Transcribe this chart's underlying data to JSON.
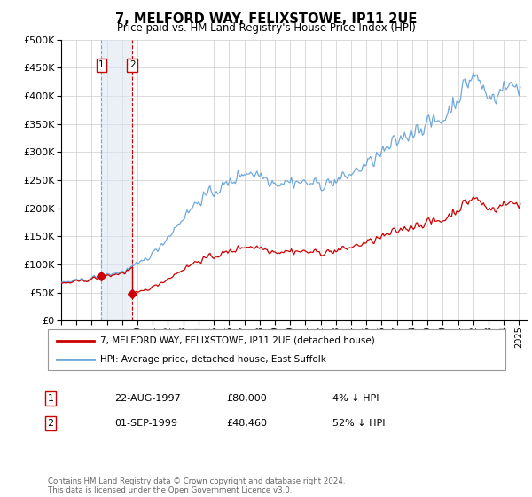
{
  "title": "7, MELFORD WAY, FELIXSTOWE, IP11 2UE",
  "subtitle": "Price paid vs. HM Land Registry's House Price Index (HPI)",
  "legend_line1": "7, MELFORD WAY, FELIXSTOWE, IP11 2UE (detached house)",
  "legend_line2": "HPI: Average price, detached house, East Suffolk",
  "footnote": "Contains HM Land Registry data © Crown copyright and database right 2024.\nThis data is licensed under the Open Government Licence v3.0.",
  "transaction1": {
    "label": "1",
    "date": "22-AUG-1997",
    "price": "£80,000",
    "hpi": "4% ↓ HPI"
  },
  "transaction2": {
    "label": "2",
    "date": "01-SEP-1999",
    "price": "£48,460",
    "hpi": "52% ↓ HPI"
  },
  "vline1_x": 1997.64,
  "vline2_x": 1999.67,
  "sale1_x": 1997.64,
  "sale1_y": 80000,
  "sale2_x": 1999.67,
  "sale2_y": 48460,
  "hpi_color": "#6fa8dc",
  "price_color": "#cc0000",
  "vline_color_blue": "#6fa8dc",
  "vline_color_red": "#cc0000",
  "bg_shade_color": "#dce6f1",
  "ylim": [
    0,
    500000
  ],
  "yticks": [
    0,
    50000,
    100000,
    150000,
    200000,
    250000,
    300000,
    350000,
    400000,
    450000,
    500000
  ],
  "xlim": [
    1995.0,
    2025.5
  ]
}
